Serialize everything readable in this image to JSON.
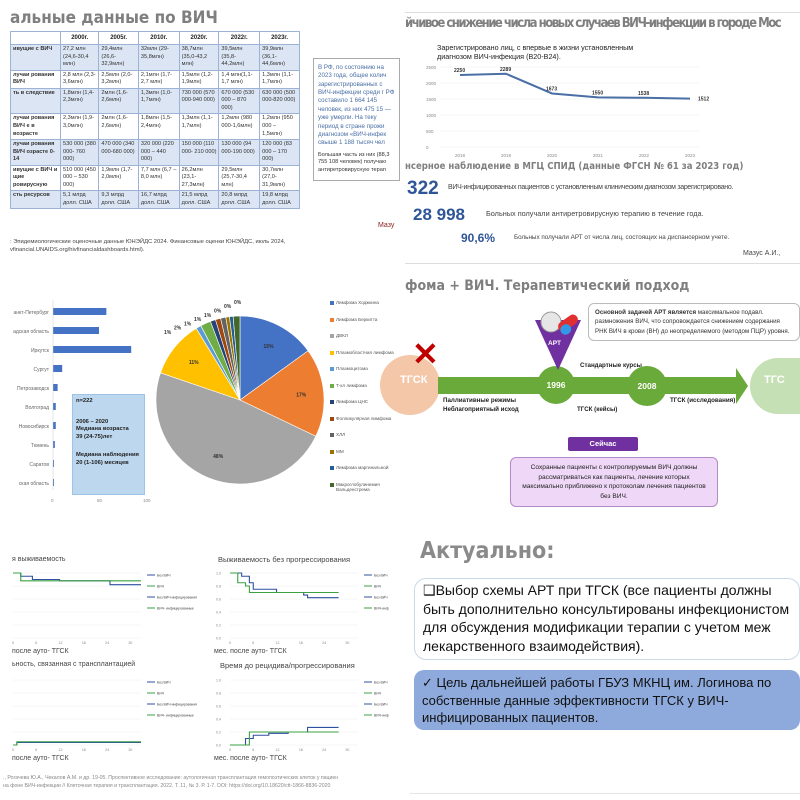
{
  "panel_hiv_global": {
    "title": "альные данные по ВИЧ",
    "headers": [
      "",
      "2000г.",
      "2005г.",
      "2010г.",
      "2020г.",
      "2022г.",
      "2023г."
    ],
    "rows": [
      [
        "ивущие с ВИЧ",
        "27,2 млн (24,6-30,4 млн)",
        "29,4млн (26,6-32,9млн)",
        "32млн (29-35,8млн)",
        "38,7млн (35,0-43,2 млн)",
        "39,5млн (35,8-44,2млн)",
        "39,9млн (36,1-44,6млн)"
      ],
      [
        "лучаи рования ВИЧ",
        "2,8 млн (2,3-3,6млн)",
        "2,5млн (2,0-3,2млн)",
        "2,1млн (1,7-2,7 млн)",
        "1,5млн (1,2-1,9млн)",
        "1,4 млн(1,1-1,7 млн)",
        "1,3млн (1,1-1,7млн)"
      ],
      [
        "ть в следствие",
        "1,8млн (1,4-2,3млн)",
        "2млн (1,6-2,6млн)",
        "1,3млн (1,0-1,7млн)",
        "730 000 (570 000-940 000)",
        "670 000 (530 000 – 870 000)",
        "630 000 (500 000-820 000)"
      ],
      [
        "лучаи рования ВИЧ е в возрасте",
        "2,3млн (1,9-3,0млн)",
        "2млн (1,6-2,6млн)",
        "1,8млн (1,5-2,4млн)",
        "1,3млн (1,1-1,7млн)",
        "1,2млн (980 000-1,6млн)",
        "1,2млн (950 000 – 1,5млн)"
      ],
      [
        "лучаи рования ВИЧ озрасте 0-14",
        "530 000 (380 000- 760 000)",
        "470 000 (340 000-680 000)",
        "320 000 (220 000 – 440 000)",
        "150 000 (110 000- 210 000)",
        "130 000 (94 000-190 000)",
        "120 000 (83 000 – 170 000)"
      ],
      [
        "ивущие с ВИЧ и щие ровирусную",
        "510 000 (450 000 – 530 000)",
        "1,9млн (1,7-2,0млн)",
        "7,7 млн (6,7 – 8,0 млн)",
        "26,2млн (23,1-27,3млн)",
        "29,5млн (25,7-30,4 млн)",
        "30,7млн (27,0-31,9млн)"
      ],
      [
        "сть ресурсов",
        "5,1 млрд долл. США",
        "9,3 млрд долл. США",
        "16,7 млрд долл. США",
        "21,5 млрд долл. США",
        "20,8 млрд долл. США",
        "19,8 млрд долл. США"
      ]
    ],
    "source_line1": ": Эпидемиологические оценочные данные ЮНЭЙДС 2024. Финансовые оценки ЮНЭЙДС, июль 2024,",
    "source_line2": "vfinancial.UNAIDS.org/hivfinancialdashboards.html).",
    "side_box": "В РФ, по состоянию на 2023 года, общее колич зарегистрированных с ВИЧ-инфекции среди г РФ составило 1 664 145 человек, из них 475 15 — уже умерли. На теку период в стране прожи диагнозом «ВИЧ-инфек свыше 1 188 тысяч чел",
    "side_box2": "Большая часть из них (88,3 755 108 человек) получаю антиретровирусную терап",
    "author": "Мазу"
  },
  "panel_moscow": {
    "title": "йчивое снижение числа новых случаев ВИЧ-инфекции в городе Мос",
    "chart_title": "Зарегистрировано лиц, с впервые в жизни установленным диагнозом ВИЧ-инфекция (B20-B24).",
    "subtitle": "нсерное наблюдение в МГЦ СПИД (данные ФГСН № 61 за 2023 год)",
    "stats": [
      {
        "value": "322",
        "text": "ВИЧ-инфицированных пациентов с установленным клиническим диагнозом зарегистрировано."
      },
      {
        "value": "28 998",
        "text": "Больных получали антиретровирусную терапию в течение года."
      },
      {
        "value": "90,6%",
        "text": "Больных получали АРТ от числа лиц, состоящих на диспансерном учете."
      }
    ],
    "author": "Мазус А.И.,"
  },
  "panel_geo": {
    "info_n": "n=222",
    "info_period": "2006 – 2020",
    "info_age_label": "Медиана возраста",
    "info_age": "39 (24-75)лет",
    "info_follow_label": "Медиана наблюдения",
    "info_follow": "20 (1-106) месяцев"
  },
  "panel_therapy": {
    "title": "фома + ВИЧ. Терапевтический подход",
    "art_label": "АРТ",
    "box_bold": "Основной задачей АРТ является",
    "box_text": " максимальное подавл. размножения ВИЧ, что сопровождается снижением содержания РНК ВИЧ в крови (ВН) до неопределяемого (методом ПЦР) уровня.",
    "left_node": "ТГСК",
    "right_node": "ТГС",
    "year1": "1996",
    "year2": "2008",
    "standard": "Стандартные курсы",
    "palliative1": "Паллиативные режимы",
    "palliative2": "Неблагоприятный исход",
    "cases": "ТГСК (кейсы)",
    "studies": "ТГСК (исследования)",
    "now": "Сейчас",
    "now_text": "Сохранные пациенты с контролируемым ВИЧ должны рассматриваться как пациенты, лечение которых максимально приближено к протоколам лечения пациентов без ВИЧ."
  },
  "panel_km": {
    "xlabel": "после ауто- ТГСК",
    "xlabel_full": "мес. после ауто- ТГСК",
    "source1": "., Рогачева Ю.А., Чекалов А.М. и др. 19-05. Проспективное исследование: аутологичная трансплантация гемопоэтических клеток у пациен",
    "source2": "на фоне ВИЧ-инфекции // Клеточная терапия и трансплантация. 2022. Т. 11, № 3. Р. 1-7. DOI: https://doi.org/10.18620/ctt-1866-8836-2020"
  },
  "panel_actual": {
    "title": "Актуально:",
    "item1": "Выбор схемы АРТ при ТГСК (все пациенты должны быть дополнительно консультированы инфекционистом для обсуждения модификации терапии с учетом меж лекарственного взаимодействия).",
    "item2": "Цель дальнейшей  работы ГБУЗ МКНЦ им. Логинова по собственные данные эффективности ТГСК у ВИЧ-инфицированных пациентов."
  },
  "chart_data": [
    {
      "type": "line",
      "title": "Зарегистрировано лиц, с впервые в жизни установленным диагнозом ВИЧ-инфекция (B20-B24).",
      "x": [
        "2018",
        "2019",
        "2020",
        "2021",
        "2022",
        "2023"
      ],
      "values": [
        2250,
        2289,
        1673,
        1550,
        1538,
        1512
      ],
      "yticks": [
        "0",
        "500",
        "1000",
        "1500",
        "2000",
        "2500"
      ],
      "ylim": [
        0,
        2500
      ],
      "color": "#4a6fa5"
    },
    {
      "type": "bar",
      "orientation": "horizontal",
      "categories": [
        "анкт-Петербург",
        "адская область",
        "Иркутск",
        "Сургут",
        "Петрозаводск",
        "Волгоград",
        "Новосибирск",
        "Тюмень",
        "Саратов",
        "ская область"
      ],
      "values": [
        58,
        50,
        85,
        10,
        5,
        3,
        3,
        2,
        1,
        1
      ],
      "xticks": [
        "0",
        "50",
        "100"
      ],
      "xlim": [
        0,
        100
      ],
      "color": "#4472c4"
    },
    {
      "type": "pie",
      "labels": [
        "Лимфома Ходжкина",
        "Лимфома Беркитта",
        "ДВКЛ",
        "Плазмобластная лимфома",
        "Плазмоцитома",
        "Т-кл лимфома",
        "Лимфома ЦНС",
        "Фолликулярная лимфома",
        "ХЛЛ",
        "ММ",
        "Лимфома маргинальной",
        "Макроглобулинемия Вальденстрема"
      ],
      "values": [
        15,
        17,
        48,
        11,
        1,
        2,
        1,
        1,
        1,
        0,
        0,
        0
      ],
      "display": [
        15,
        17,
        48,
        11,
        1,
        2,
        1,
        1,
        1,
        0.7,
        0.7,
        1.3
      ],
      "value_labels": [
        "15%",
        "17%",
        "48%",
        "11%",
        "1%",
        "2%",
        "1%",
        "1%",
        "1%",
        "0%",
        "0%",
        "0%"
      ],
      "colors": [
        "#4472c4",
        "#ed7d31",
        "#a5a5a5",
        "#ffc000",
        "#5b9bd5",
        "#70ad47",
        "#264478",
        "#9e480e",
        "#636363",
        "#997300",
        "#255e91",
        "#43682b"
      ]
    },
    {
      "type": "line",
      "title": "я выживаемость",
      "legend": [
        "Без ВИЧ",
        "ВИЧ",
        "Без ВИЧ-инфицирования",
        "ВИЧ- инфицированные"
      ],
      "series": [
        {
          "name": "Без ВИЧ",
          "values": [
            [
              0,
              1
            ],
            [
              2,
              0.95
            ],
            [
              5,
              0.9
            ],
            [
              12,
              0.88
            ],
            [
              24,
              0.88
            ],
            [
              25,
              0.82
            ],
            [
              33,
              0.82
            ]
          ]
        },
        {
          "name": "ВИЧ",
          "values": [
            [
              0,
              1
            ],
            [
              2,
              0.88
            ],
            [
              33,
              0.88
            ]
          ]
        }
      ],
      "xticks": [
        "0",
        "6",
        "12",
        "18",
        "24",
        "30"
      ]
    },
    {
      "type": "line",
      "title": "Выживаемость без прогрессирования",
      "legend": [
        "Без ВИЧ",
        "ВИЧ",
        "Без ВИЧ",
        "ВИЧ-инф"
      ],
      "yticks": [
        "0.0",
        "0.2",
        "0.4",
        "0.6",
        "0.8",
        "1.0"
      ],
      "series": [
        {
          "name": "Без ВИЧ",
          "values": [
            [
              0,
              1
            ],
            [
              3,
              0.95
            ],
            [
              5,
              0.85
            ],
            [
              6,
              0.75
            ],
            [
              12,
              0.7
            ],
            [
              19,
              0.66
            ],
            [
              20,
              0.62
            ],
            [
              28,
              0.62
            ]
          ]
        },
        {
          "name": "ВИЧ",
          "values": [
            [
              0,
              1
            ],
            [
              2,
              0.85
            ],
            [
              4,
              0.8
            ],
            [
              5,
              0.7
            ],
            [
              28,
              0.7
            ]
          ]
        }
      ],
      "xticks": [
        "0",
        "6",
        "12",
        "18",
        "24",
        "30"
      ]
    },
    {
      "type": "line",
      "title": "ьность, связанная с трансплантацией",
      "legend": [
        "Без ВИЧ",
        "ВИЧ",
        "Без ВИЧ-инфицирования",
        "ВИЧ- инфицированные"
      ],
      "series": [
        {
          "name": "Без ВИЧ",
          "values": [
            [
              0,
              0
            ],
            [
              1,
              0.04
            ],
            [
              33,
              0.04
            ]
          ]
        },
        {
          "name": "ВИЧ",
          "values": [
            [
              0,
              0
            ],
            [
              1,
              0.05
            ],
            [
              33,
              0.05
            ]
          ]
        }
      ],
      "xticks": [
        "0",
        "6",
        "12",
        "18",
        "24",
        "30"
      ]
    },
    {
      "type": "line",
      "title": "Время до рецидива/прогрессирования",
      "legend": [
        "Без ВИЧ",
        "ВИЧ",
        "Без ВИЧ",
        "ВИЧ-инф"
      ],
      "yticks": [
        "0.0",
        "0.2",
        "0.4",
        "0.6",
        "0.8",
        "1.0"
      ],
      "series": [
        {
          "name": "Без ВИЧ",
          "values": [
            [
              0,
              0
            ],
            [
              3,
              0
            ],
            [
              4,
              0.1
            ],
            [
              6,
              0.15
            ],
            [
              10,
              0.18
            ],
            [
              15,
              0.2
            ],
            [
              20,
              0.27
            ],
            [
              28,
              0.27
            ]
          ]
        },
        {
          "name": "ВИЧ",
          "values": [
            [
              0,
              0
            ],
            [
              3,
              0
            ],
            [
              5,
              0.2
            ],
            [
              28,
              0.2
            ]
          ]
        }
      ],
      "xticks": [
        "0",
        "6",
        "12",
        "18",
        "24",
        "30"
      ]
    }
  ]
}
